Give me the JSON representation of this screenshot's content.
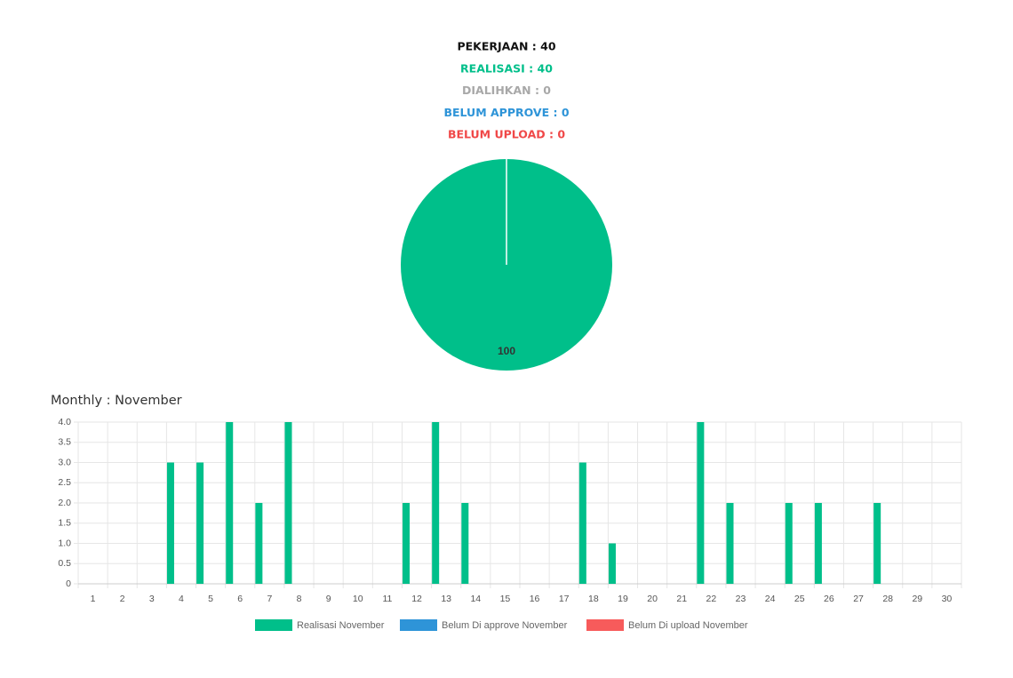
{
  "summary": [
    {
      "text": "PEKERJAAN : 40",
      "color": "#111111"
    },
    {
      "text": "REALISASI : 40",
      "color": "#00bf8a"
    },
    {
      "text": "DIALIHKAN : 0",
      "color": "#a8a8a8"
    },
    {
      "text": "BELUM APPROVE : 0",
      "color": "#2e94d8"
    },
    {
      "text": "BELUM UPLOAD : 0",
      "color": "#f04848"
    }
  ],
  "chart_data": [
    {
      "type": "pie",
      "values": [
        100
      ],
      "colors": [
        "#00bf8a"
      ]
    },
    {
      "type": "bar",
      "title": "Monthly : November",
      "categories": [
        "1",
        "2",
        "3",
        "4",
        "5",
        "6",
        "7",
        "8",
        "9",
        "10",
        "11",
        "12",
        "13",
        "14",
        "15",
        "16",
        "17",
        "18",
        "19",
        "20",
        "21",
        "22",
        "23",
        "24",
        "25",
        "26",
        "27",
        "28",
        "29",
        "30"
      ],
      "series": [
        {
          "name": "Realisasi November",
          "color": "#00bf8a",
          "values": [
            0,
            0,
            0,
            3,
            3,
            4,
            2,
            4,
            0,
            0,
            0,
            2,
            4,
            2,
            0,
            0,
            0,
            3,
            1,
            0,
            0,
            4,
            2,
            0,
            2,
            2,
            0,
            2,
            0,
            0
          ]
        },
        {
          "name": "Belum Di approve November",
          "color": "#2e94d8",
          "values": [
            0,
            0,
            0,
            0,
            0,
            0,
            0,
            0,
            0,
            0,
            0,
            0,
            0,
            0,
            0,
            0,
            0,
            0,
            0,
            0,
            0,
            0,
            0,
            0,
            0,
            0,
            0,
            0,
            0,
            0
          ]
        },
        {
          "name": "Belum Di upload November",
          "color": "#f75b5b",
          "values": [
            0,
            0,
            0,
            0,
            0,
            0,
            0,
            0,
            0,
            0,
            0,
            0,
            0,
            0,
            0,
            0,
            0,
            0,
            0,
            0,
            0,
            0,
            0,
            0,
            0,
            0,
            0,
            0,
            0,
            0
          ]
        }
      ],
      "ylim": [
        0,
        4
      ],
      "yticks": [
        0,
        0.5,
        {
          "value": 1,
          "label": "1.0"
        },
        1.5,
        {
          "value": 2,
          "label": "2.0"
        },
        2.5,
        {
          "value": 3,
          "label": "3.0"
        },
        3.5,
        {
          "value": 4,
          "label": "4.0"
        }
      ],
      "grid": true,
      "legend": "bottom"
    }
  ]
}
